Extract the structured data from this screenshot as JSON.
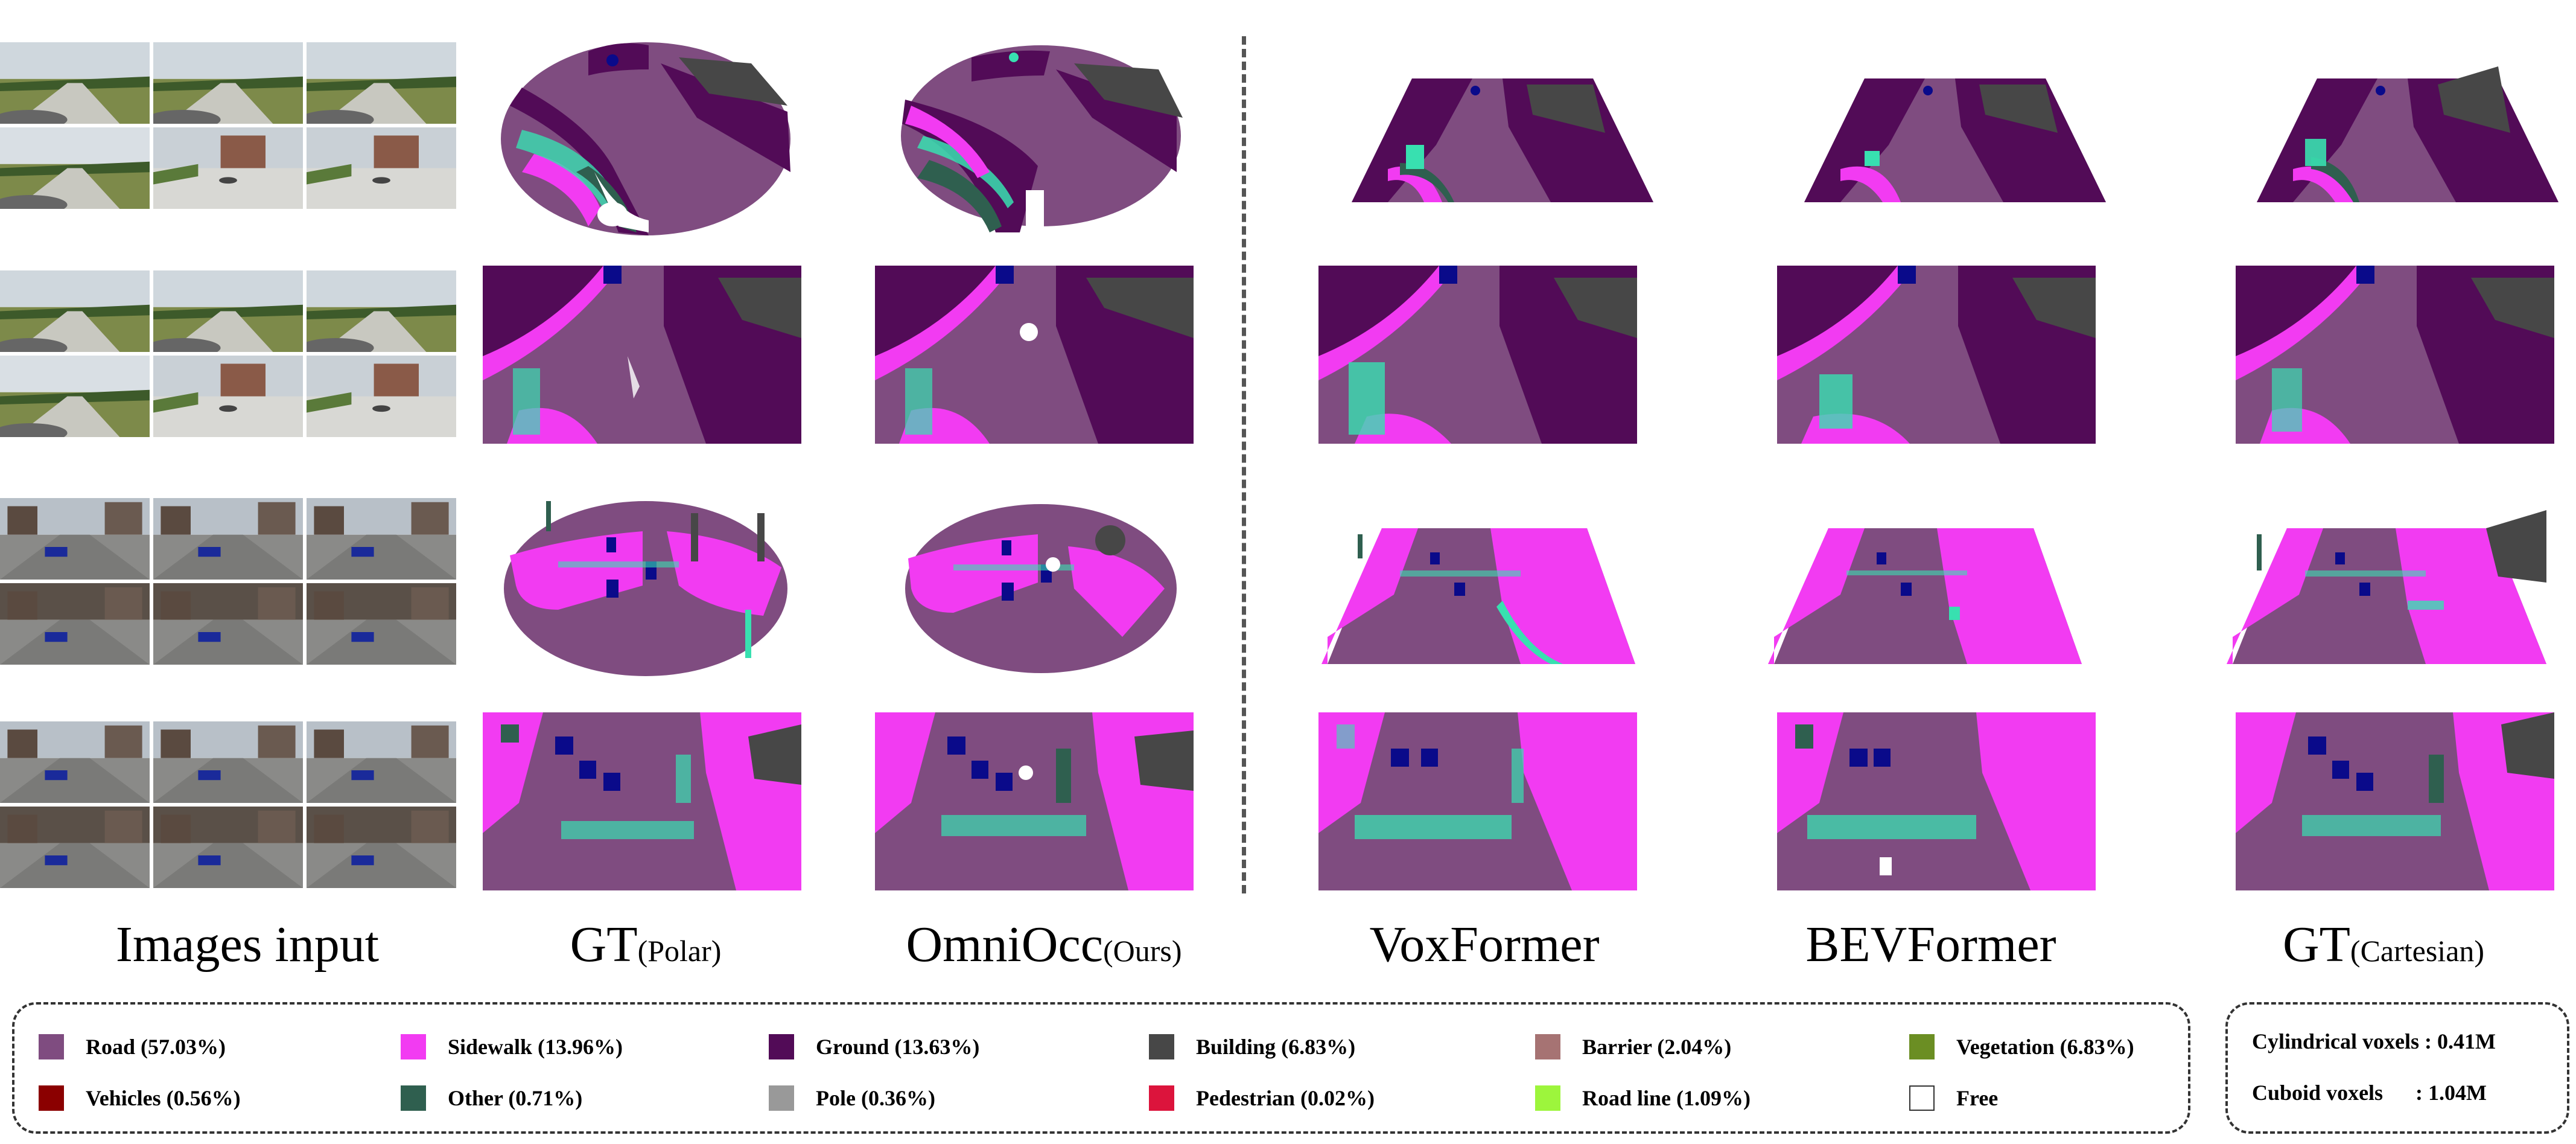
{
  "columns": {
    "images": "Images input",
    "gt_polar": {
      "main": "GT",
      "sub": "(Polar)"
    },
    "omniocc": {
      "main": "OmniOcc",
      "sub": "(Ours)"
    },
    "voxformer": "VoxFormer",
    "bevformer": "BEVFormer",
    "gt_cartesian": {
      "main": "GT",
      "sub": "(Cartesian)"
    }
  },
  "colors": {
    "road": "#7f4c80",
    "sidewalk": "#f23bf2",
    "ground": "#520b57",
    "building": "#474747",
    "barrier": "#a67373",
    "vegetation": "#6b8e23",
    "vehicles": "#8b0000",
    "other": "#2f5f4f",
    "pole": "#999999",
    "pedestrian": "#dc143c",
    "road_line": "#9df53c",
    "free": "#ffffff",
    "marking": "#38e0b0",
    "car": "#0a0a8a"
  },
  "legend": [
    {
      "label": "Road (57.03%)",
      "color": "#7f4c80"
    },
    {
      "label": "Sidewalk (13.96%)",
      "color": "#f23bf2"
    },
    {
      "label": "Ground (13.63%)",
      "color": "#520b57"
    },
    {
      "label": "Building (6.83%)",
      "color": "#474747"
    },
    {
      "label": "Barrier (2.04%)",
      "color": "#a67373"
    },
    {
      "label": "Vegetation (6.83%)",
      "color": "#6b8e23"
    },
    {
      "label": "Vehicles (0.56%)",
      "color": "#8b0000"
    },
    {
      "label": "Other (0.71%)",
      "color": "#2f5f4f"
    },
    {
      "label": "Pole (0.36%)",
      "color": "#999999"
    },
    {
      "label": "Pedestrian (0.02%)",
      "color": "#dc143c"
    },
    {
      "label": "Road line (1.09%)",
      "color": "#9df53c"
    },
    {
      "label": "Free",
      "color": "#ffffff"
    }
  ],
  "voxels": {
    "cylindrical": "Cylindrical voxels : 0.41M",
    "cuboid": "Cuboid voxels      : 1.04M"
  }
}
